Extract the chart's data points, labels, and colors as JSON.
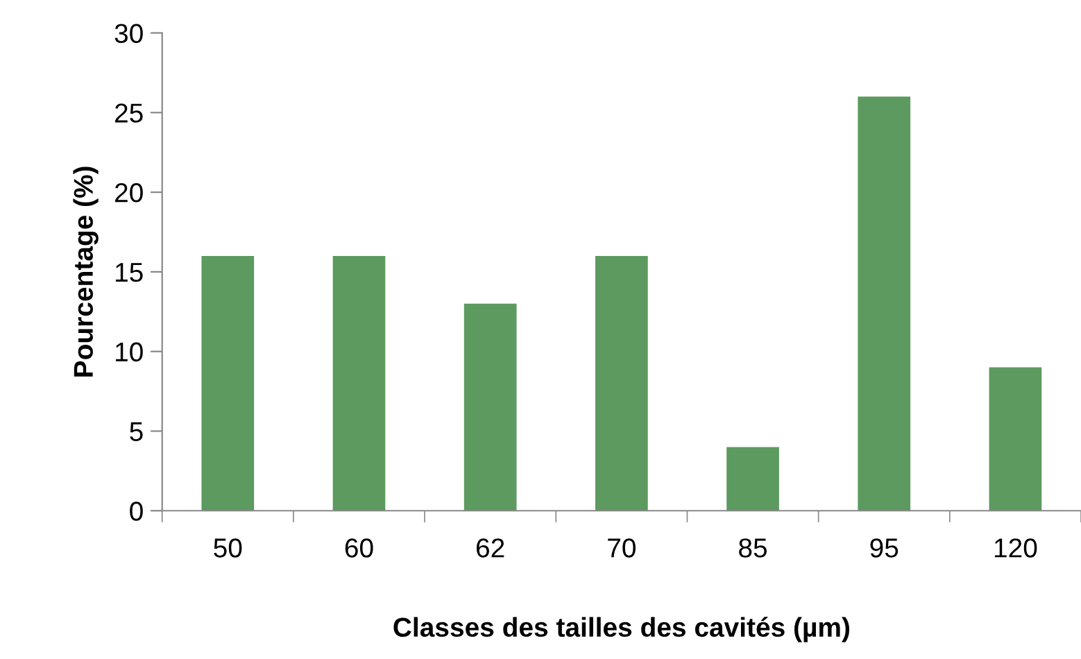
{
  "chart_data": {
    "type": "bar",
    "xlabel": "Classes des tailles des cavités (µm)",
    "ylabel": "Pourcentage (%)",
    "categories": [
      "50",
      "60",
      "62",
      "70",
      "85",
      "95",
      "120"
    ],
    "values": [
      16,
      16,
      13,
      16,
      4,
      26,
      9
    ],
    "color": "#5c9a5f",
    "ylim": [
      0,
      30
    ],
    "yticks": [
      0,
      5,
      10,
      15,
      20,
      25,
      30
    ],
    "grid": false
  }
}
